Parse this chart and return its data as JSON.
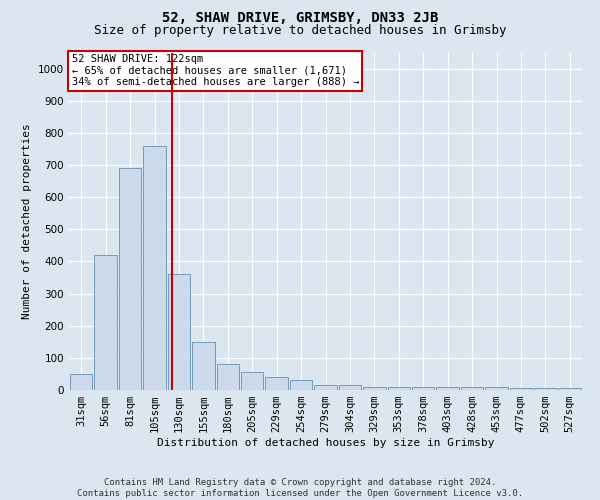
{
  "title": "52, SHAW DRIVE, GRIMSBY, DN33 2JB",
  "subtitle": "Size of property relative to detached houses in Grimsby",
  "xlabel": "Distribution of detached houses by size in Grimsby",
  "ylabel": "Number of detached properties",
  "bar_labels": [
    "31sqm",
    "56sqm",
    "81sqm",
    "105sqm",
    "130sqm",
    "155sqm",
    "180sqm",
    "205sqm",
    "229sqm",
    "254sqm",
    "279sqm",
    "304sqm",
    "329sqm",
    "353sqm",
    "378sqm",
    "403sqm",
    "428sqm",
    "453sqm",
    "477sqm",
    "502sqm",
    "527sqm"
  ],
  "bar_values": [
    50,
    420,
    690,
    760,
    360,
    150,
    80,
    55,
    42,
    30,
    15,
    15,
    10,
    10,
    10,
    10,
    10,
    10,
    5,
    5,
    5
  ],
  "bar_color": "#ccdaeb",
  "bar_edge_color": "#7799bb",
  "ylim": [
    0,
    1050
  ],
  "yticks": [
    0,
    100,
    200,
    300,
    400,
    500,
    600,
    700,
    800,
    900,
    1000
  ],
  "vline_pos": 3.72,
  "vline_color": "#cc0000",
  "annotation_text": "52 SHAW DRIVE: 122sqm\n← 65% of detached houses are smaller (1,671)\n34% of semi-detached houses are larger (888) →",
  "annotation_box_facecolor": "#ffffff",
  "annotation_box_edgecolor": "#cc0000",
  "footer_text": "Contains HM Land Registry data © Crown copyright and database right 2024.\nContains public sector information licensed under the Open Government Licence v3.0.",
  "background_color": "#dce6f0",
  "plot_bg_color": "#dce6f0",
  "grid_color": "#ffffff",
  "title_fontsize": 10,
  "subtitle_fontsize": 9,
  "axis_label_fontsize": 8,
  "tick_fontsize": 7.5,
  "annotation_fontsize": 7.5,
  "footer_fontsize": 6.5
}
